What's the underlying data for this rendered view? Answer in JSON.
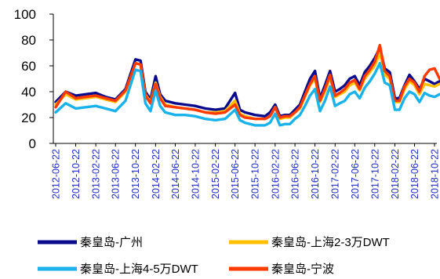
{
  "chart_data": {
    "type": "line",
    "title": "",
    "xlabel": "",
    "ylabel": "",
    "ylim": [
      0,
      100
    ],
    "yticks": [
      0,
      20,
      40,
      60,
      80,
      100
    ],
    "x_tick_labels": [
      "2012-06-22",
      "2012-10-22",
      "2013-02-22",
      "2013-06-22",
      "2013-10-22",
      "2014-02-22",
      "2014-06-22",
      "2014-10-22",
      "2015-02-22",
      "2015-06-22",
      "2015-10-22",
      "2016-02-22",
      "2016-06-22",
      "2016-10-22",
      "2017-02-22",
      "2017-06-22",
      "2017-10-22",
      "2018-02-22",
      "2018-06-22",
      "2018-10-22"
    ],
    "x": [
      "2012-06-22",
      "2012-08-22",
      "2012-10-22",
      "2012-12-22",
      "2013-02-22",
      "2013-04-22",
      "2013-06-22",
      "2013-08-22",
      "2013-10-22",
      "2013-11-22",
      "2013-12-22",
      "2014-01-22",
      "2014-02-22",
      "2014-03-22",
      "2014-04-22",
      "2014-06-22",
      "2014-08-22",
      "2014-10-22",
      "2014-12-22",
      "2015-02-22",
      "2015-04-22",
      "2015-06-22",
      "2015-07-22",
      "2015-08-22",
      "2015-10-22",
      "2015-12-22",
      "2016-01-22",
      "2016-02-22",
      "2016-03-22",
      "2016-04-22",
      "2016-05-22",
      "2016-06-22",
      "2016-07-22",
      "2016-08-22",
      "2016-09-22",
      "2016-10-22",
      "2016-11-22",
      "2016-12-22",
      "2017-01-22",
      "2017-02-22",
      "2017-03-22",
      "2017-04-22",
      "2017-05-22",
      "2017-06-22",
      "2017-07-22",
      "2017-08-22",
      "2017-09-22",
      "2017-10-22",
      "2017-11-22",
      "2017-12-22",
      "2018-01-22",
      "2018-02-22",
      "2018-03-22",
      "2018-04-22",
      "2018-05-22",
      "2018-06-22",
      "2018-07-22",
      "2018-08-22",
      "2018-09-22",
      "2018-10-22",
      "2018-11-22"
    ],
    "series": [
      {
        "name": "秦皇岛-广州",
        "color": "#0a0a8c",
        "values": [
          32,
          40,
          37,
          38,
          39,
          36,
          34,
          42,
          65,
          64,
          40,
          34,
          52,
          38,
          33,
          31,
          30,
          29,
          27,
          26,
          27,
          39,
          26,
          24,
          22,
          21,
          24,
          30,
          21,
          22,
          22,
          26,
          30,
          40,
          50,
          56,
          35,
          45,
          56,
          40,
          42,
          45,
          50,
          52,
          45,
          55,
          60,
          66,
          74,
          58,
          55,
          35,
          35,
          45,
          53,
          48,
          42,
          50,
          48,
          46,
          48
        ]
      },
      {
        "name": "秦皇岛-上海2-3万DWT",
        "color": "#ffc000",
        "values": [
          30,
          38,
          34,
          35,
          36,
          34,
          32,
          40,
          62,
          61,
          38,
          32,
          47,
          36,
          30,
          28,
          27,
          26,
          24,
          24,
          25,
          33,
          23,
          21,
          19,
          19,
          21,
          28,
          19,
          20,
          20,
          24,
          27,
          36,
          45,
          50,
          32,
          40,
          51,
          36,
          38,
          40,
          45,
          47,
          41,
          50,
          55,
          60,
          70,
          53,
          50,
          32,
          32,
          42,
          48,
          45,
          38,
          46,
          45,
          44,
          46
        ]
      },
      {
        "name": "秦皇岛-上海4-5万DWT",
        "color": "#1ab2ea",
        "values": [
          24,
          31,
          27,
          28,
          29,
          27,
          25,
          33,
          57,
          56,
          31,
          25,
          41,
          29,
          24,
          22,
          22,
          21,
          19,
          18,
          19,
          26,
          18,
          16,
          14,
          14,
          16,
          23,
          14,
          15,
          15,
          19,
          22,
          29,
          37,
          42,
          25,
          33,
          44,
          29,
          31,
          33,
          38,
          40,
          35,
          43,
          48,
          54,
          62,
          47,
          45,
          26,
          26,
          35,
          40,
          38,
          32,
          39,
          37,
          36,
          38
        ]
      },
      {
        "name": "秦皇岛-宁波",
        "color": "#ff3a00",
        "values": [
          28,
          40,
          35,
          36,
          37,
          35,
          33,
          41,
          62,
          61,
          37,
          31,
          46,
          35,
          29,
          28,
          27,
          26,
          24,
          23,
          24,
          30,
          22,
          20,
          19,
          19,
          21,
          28,
          20,
          21,
          21,
          24,
          28,
          37,
          46,
          52,
          33,
          42,
          53,
          37,
          39,
          42,
          47,
          49,
          42,
          52,
          57,
          63,
          76,
          56,
          52,
          33,
          33,
          44,
          50,
          47,
          40,
          52,
          57,
          58,
          50
        ]
      }
    ],
    "legend_position": "bottom",
    "grid": false
  }
}
